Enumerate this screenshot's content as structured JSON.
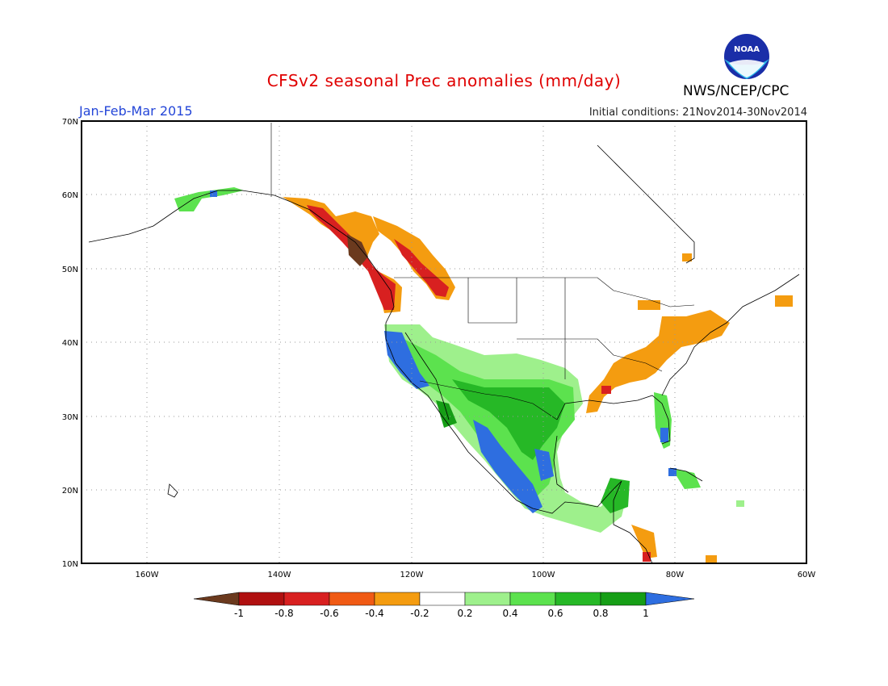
{
  "header": {
    "title": "CFSv2 seasonal Prec anomalies (mm/day)",
    "period": "Jan-Feb-Mar 2015",
    "initial_conditions": "Initial conditions: 21Nov2014-30Nov2014",
    "agency": "NWS/NCEP/CPC",
    "logo_text": "NOAA"
  },
  "map": {
    "region": "North America",
    "lon_range": [
      -170,
      -60
    ],
    "lat_range": [
      10,
      70
    ],
    "lon_ticks": [
      "160W",
      "140W",
      "120W",
      "100W",
      "80W",
      "60W"
    ],
    "lat_ticks": [
      "10N",
      "20N",
      "30N",
      "40N",
      "50N",
      "60N",
      "70N"
    ],
    "grid": "dotted",
    "anomaly_regions": [
      {
        "area": "Alaska southwest",
        "sign": "wet",
        "level": "0.4-0.8"
      },
      {
        "area": "Pacific Northwest / British Columbia coast",
        "sign": "dry",
        "level": "-0.6 to -1"
      },
      {
        "area": "Inland Northwest",
        "sign": "dry",
        "level": "-0.2 to -0.8"
      },
      {
        "area": "California coast",
        "sign": "wet",
        "level": ">1"
      },
      {
        "area": "Southwest US / Northwest Mexico",
        "sign": "wet",
        "level": "0.2-1"
      },
      {
        "area": "Southern Plains / Texas",
        "sign": "wet",
        "level": "0.4-1"
      },
      {
        "area": "Ohio Valley / Northeast",
        "sign": "dry",
        "level": "-0.2 to -0.4"
      },
      {
        "area": "Florida",
        "sign": "wet",
        "level": "0.4-1"
      },
      {
        "area": "Southern Mexico / Central America",
        "sign": "wet",
        "level": "0.2-0.8"
      }
    ]
  },
  "colorbar": {
    "labels": [
      "-1",
      "-0.8",
      "-0.6",
      "-0.4",
      "-0.2",
      "0.2",
      "0.4",
      "0.6",
      "0.8",
      "1"
    ],
    "colors": [
      "#6b3a1e",
      "#b01010",
      "#d82020",
      "#f05a14",
      "#f49c10",
      "#ffffff",
      "#9ef08c",
      "#5ce24e",
      "#26b826",
      "#169e16",
      "#2e6ee0"
    ]
  }
}
